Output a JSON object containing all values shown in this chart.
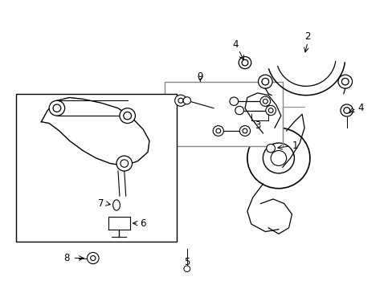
{
  "background_color": "#ffffff",
  "line_color": "#000000",
  "label_color": "#000000",
  "fig_width": 4.89,
  "fig_height": 3.6,
  "dpi": 100,
  "gray_color": "#888888"
}
